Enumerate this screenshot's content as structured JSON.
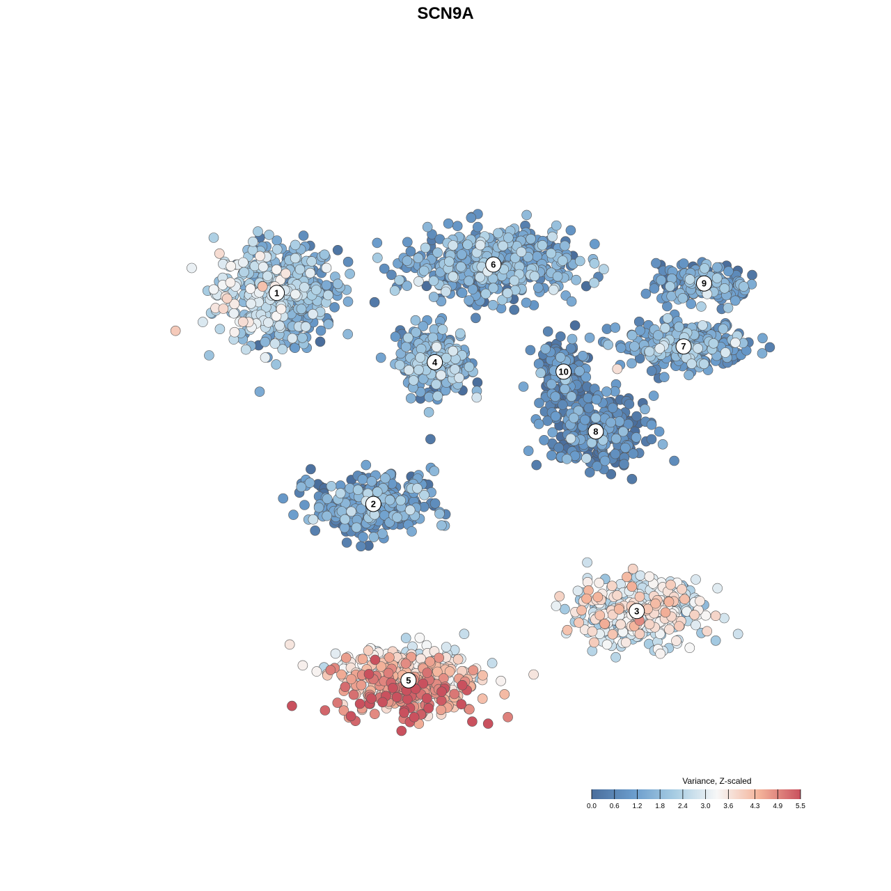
{
  "chart_data": {
    "type": "scatter",
    "title": "SCN9A",
    "xlabel": "",
    "ylabel": "",
    "grid": false,
    "legend_position": "bottom-right",
    "colorbar": {
      "title": "Variance, Z-scaled",
      "min": 0.0,
      "max": 5.5,
      "ticks": [
        0.0,
        0.6,
        1.2,
        1.8,
        2.4,
        3.0,
        3.6,
        4.3,
        4.9,
        5.5
      ],
      "tick_labels": [
        "0.0",
        "0.6",
        "1.2",
        "1.8",
        "2.4",
        "3.0",
        "3.6",
        "4.3",
        "4.9",
        "5.5"
      ],
      "colors": [
        "#4a6e9c",
        "#6a9ccc",
        "#a8cde3",
        "#f7f7f7",
        "#f4b49b",
        "#c9515e"
      ]
    },
    "clusters": [
      {
        "label": "1",
        "x": -6.3,
        "y": 5.9,
        "mean": 1.8
      },
      {
        "label": "6",
        "x": 1.1,
        "y": 6.8,
        "mean": 1.1
      },
      {
        "label": "9",
        "x": 8.3,
        "y": 6.2,
        "mean": 1.0
      },
      {
        "label": "7",
        "x": 7.6,
        "y": 4.2,
        "mean": 1.2
      },
      {
        "label": "4",
        "x": -0.9,
        "y": 3.7,
        "mean": 1.3
      },
      {
        "label": "10",
        "x": 3.5,
        "y": 3.4,
        "mean": 0.4
      },
      {
        "label": "8",
        "x": 4.6,
        "y": 1.5,
        "mean": 0.4
      },
      {
        "label": "2",
        "x": -3.0,
        "y": -0.8,
        "mean": 0.9
      },
      {
        "label": "3",
        "x": 6.0,
        "y": -4.2,
        "mean": 2.9
      },
      {
        "label": "5",
        "x": -1.8,
        "y": -6.4,
        "mean": 4.0
      }
    ]
  }
}
